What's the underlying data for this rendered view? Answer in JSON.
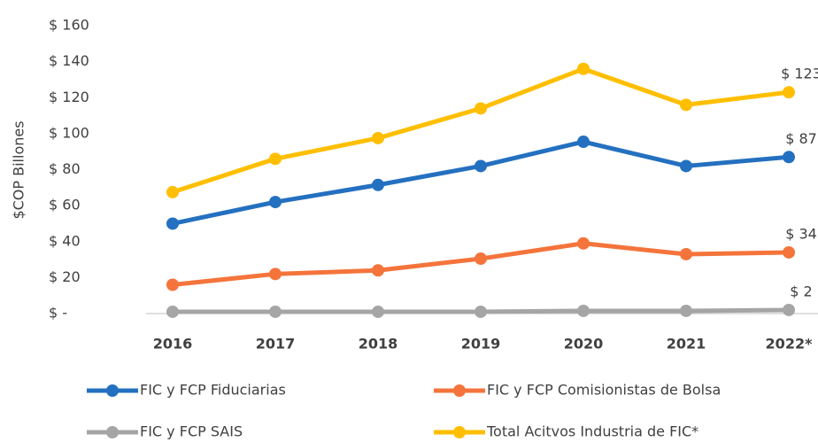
{
  "chart_data": {
    "type": "line",
    "y_axis_label": "$COP Billones",
    "categories": [
      "2016",
      "2017",
      "2018",
      "2019",
      "2020",
      "2021",
      "2022*"
    ],
    "series": [
      {
        "name": "FIC y FCP Fiduciarias",
        "color": "#2470c0",
        "values": [
          50,
          62,
          71.5,
          82,
          95.5,
          82,
          87
        ],
        "value_labels": [
          null,
          null,
          null,
          null,
          null,
          null,
          "$ 87"
        ]
      },
      {
        "name": "FIC y FCP Comisionistas de Bolsa",
        "color": "#f4743b",
        "values": [
          16,
          22,
          24,
          30.5,
          39,
          33,
          34
        ],
        "value_labels": [
          null,
          null,
          null,
          null,
          null,
          null,
          "$ 34"
        ]
      },
      {
        "name": "FIC y FCP SAIS",
        "color": "#a5a5a5",
        "values": [
          1,
          1,
          1,
          1,
          1.5,
          1.5,
          2
        ],
        "value_labels": [
          null,
          null,
          null,
          null,
          null,
          null,
          "$ 2"
        ]
      },
      {
        "name": "Total Acitvos Industria de FIC*",
        "color": "#ffbf00",
        "values": [
          67.5,
          86,
          97.5,
          114,
          136,
          116,
          123
        ],
        "value_labels": [
          null,
          null,
          null,
          null,
          null,
          null,
          "$ 123"
        ]
      }
    ],
    "ylim": [
      0,
      160
    ],
    "yticks": [
      {
        "value": 0,
        "label": "$ -"
      },
      {
        "value": 20,
        "label": "$ 20"
      },
      {
        "value": 40,
        "label": "$ 40"
      },
      {
        "value": 60,
        "label": "$ 60"
      },
      {
        "value": 80,
        "label": "$ 80"
      },
      {
        "value": 100,
        "label": "$ 100"
      },
      {
        "value": 120,
        "label": "$ 120"
      },
      {
        "value": 140,
        "label": "$ 140"
      },
      {
        "value": 160,
        "label": "$ 160"
      }
    ],
    "grid": false
  }
}
